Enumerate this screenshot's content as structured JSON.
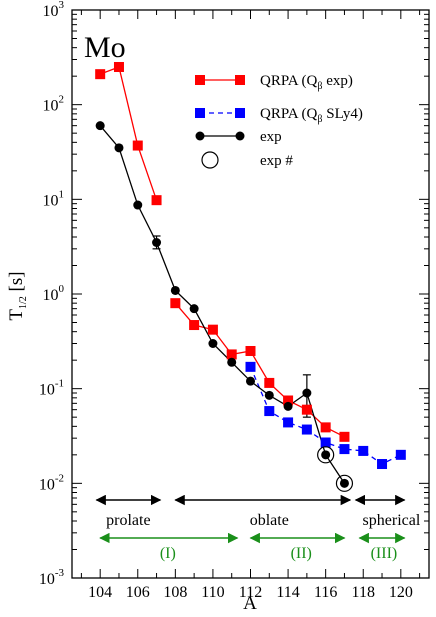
{
  "chart_data": {
    "type": "scatter",
    "panel_label": "Mo",
    "xlabel": "A",
    "ylabel": {
      "main": "T",
      "sub": "1/2",
      "unit": " [s]"
    },
    "xlim": [
      102.5,
      121.5
    ],
    "ylim_log10": [
      -3,
      3
    ],
    "x_ticks": [
      "104",
      "106",
      "108",
      "110",
      "112",
      "114",
      "116",
      "118",
      "120"
    ],
    "y_ticks": [
      {
        "base": "10",
        "exp": "-3"
      },
      {
        "base": "10",
        "exp": "-2"
      },
      {
        "base": "10",
        "exp": "-1"
      },
      {
        "base": "10",
        "exp": "0"
      },
      {
        "base": "10",
        "exp": "1"
      },
      {
        "base": "10",
        "exp": "2"
      },
      {
        "base": "10",
        "exp": "3"
      }
    ],
    "y_scale": "log",
    "grid": false,
    "legend_position": "top-right",
    "series": [
      {
        "name": "QRPA (Qβ exp)",
        "legend": {
          "pre": "QRPA (Q",
          "sub": "β",
          "post": " exp)"
        },
        "color": "#ff0000",
        "marker": "square",
        "line": "solid",
        "segments": [
          [
            [
              104,
              210
            ],
            [
              105,
              250
            ],
            [
              106,
              37
            ],
            [
              107,
              9.8
            ]
          ],
          [
            [
              108,
              0.8
            ],
            [
              109,
              0.47
            ],
            [
              110,
              0.42
            ],
            [
              111,
              0.23
            ],
            [
              112,
              0.25
            ],
            [
              113,
              0.115
            ],
            [
              114,
              0.075
            ],
            [
              115,
              0.06
            ],
            [
              116,
              0.039
            ],
            [
              117,
              0.031
            ]
          ]
        ]
      },
      {
        "name": "QRPA (Qβ SLy4)",
        "legend": {
          "pre": "QRPA (Q",
          "sub": "β",
          "post": " SLy4)"
        },
        "color": "#0000ff",
        "marker": "square",
        "line": "dashed",
        "segments": [
          [
            [
              112,
              0.17
            ],
            [
              113,
              0.058
            ],
            [
              114,
              0.044
            ],
            [
              115,
              0.037
            ],
            [
              116,
              0.027
            ],
            [
              117,
              0.023
            ],
            [
              118,
              0.022
            ],
            [
              119,
              0.016
            ],
            [
              120,
              0.02
            ]
          ]
        ]
      },
      {
        "name": "exp",
        "color": "#000000",
        "marker": "circle",
        "line": "solid",
        "segments": [
          [
            [
              104,
              60
            ],
            [
              105,
              35
            ],
            [
              106,
              8.7
            ],
            [
              107,
              3.5
            ],
            [
              108,
              1.09
            ],
            [
              109,
              0.7
            ],
            [
              110,
              0.3
            ],
            [
              111,
              0.19
            ],
            [
              112,
              0.12
            ],
            [
              113,
              0.085
            ],
            [
              114,
              0.065
            ],
            [
              115,
              0.09
            ],
            [
              116,
              0.02
            ],
            [
              117,
              0.01
            ]
          ]
        ],
        "error_bars": [
          {
            "x": 107,
            "lo": 3.0,
            "hi": 4.1
          },
          {
            "x": 115,
            "lo": 0.05,
            "hi": 0.14
          }
        ]
      },
      {
        "name": "exp #",
        "color": "#000000",
        "marker": "open-circle",
        "line": "none",
        "points": [
          [
            116,
            0.02
          ],
          [
            117,
            0.01
          ]
        ]
      }
    ],
    "annotations": [
      {
        "text": "prolate",
        "arrow_from": 103.8,
        "arrow_to": 107.2,
        "text_x": 105.5,
        "color": "#000000"
      },
      {
        "text": "oblate",
        "arrow_from": 108,
        "arrow_to": 117.3,
        "text_x": 113,
        "color": "#000000"
      },
      {
        "text": "spherical",
        "arrow_from": 117.6,
        "arrow_to": 120.2,
        "text_x": 119.5,
        "color": "#000000"
      },
      {
        "text": "(I)",
        "arrow_from": 104,
        "arrow_to": 111.3,
        "text_x": 107.6,
        "color": "#1a8f1a"
      },
      {
        "text": "(II)",
        "arrow_from": 112,
        "arrow_to": 117,
        "text_x": 114.7,
        "color": "#1a8f1a"
      },
      {
        "text": "(III)",
        "arrow_from": 117.8,
        "arrow_to": 120.2,
        "text_x": 119.1,
        "color": "#1a8f1a"
      }
    ]
  }
}
